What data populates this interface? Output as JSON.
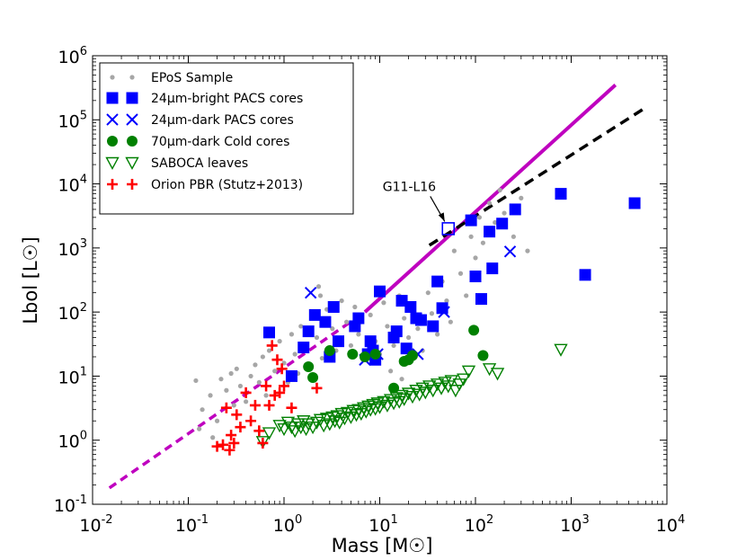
{
  "chart_data": {
    "type": "scatter",
    "title": "",
    "xlabel": "Mass [M☉]",
    "ylabel": "Lbol [L☉]",
    "xscale": "log",
    "yscale": "log",
    "xlim": [
      0.01,
      10000
    ],
    "ylim": [
      0.1,
      1000000
    ],
    "grid": false,
    "legend_position": "top-left",
    "x_ticks": [
      {
        "value": 0.01,
        "base": "10",
        "exp": "-2"
      },
      {
        "value": 0.1,
        "base": "10",
        "exp": "-1"
      },
      {
        "value": 1,
        "base": "10",
        "exp": "0"
      },
      {
        "value": 10,
        "base": "10",
        "exp": "1"
      },
      {
        "value": 100,
        "base": "10",
        "exp": "2"
      },
      {
        "value": 1000,
        "base": "10",
        "exp": "3"
      },
      {
        "value": 10000,
        "base": "10",
        "exp": "4"
      }
    ],
    "y_ticks": [
      {
        "value": 0.1,
        "base": "10",
        "exp": "-1"
      },
      {
        "value": 1,
        "base": "10",
        "exp": "0"
      },
      {
        "value": 10,
        "base": "10",
        "exp": "1"
      },
      {
        "value": 100,
        "base": "10",
        "exp": "2"
      },
      {
        "value": 1000,
        "base": "10",
        "exp": "3"
      },
      {
        "value": 10000,
        "base": "10",
        "exp": "4"
      },
      {
        "value": 100000,
        "base": "10",
        "exp": "5"
      },
      {
        "value": 1000000,
        "base": "10",
        "exp": "6"
      }
    ],
    "series": [
      {
        "name": "EPoS Sample",
        "marker": "dot",
        "color": "#a6a6a6",
        "points": [
          [
            0.12,
            8.5
          ],
          [
            0.14,
            3
          ],
          [
            0.17,
            5
          ],
          [
            0.2,
            2
          ],
          [
            0.22,
            9
          ],
          [
            0.25,
            6
          ],
          [
            0.28,
            11
          ],
          [
            0.3,
            3.5
          ],
          [
            0.32,
            13
          ],
          [
            0.35,
            7
          ],
          [
            0.4,
            4
          ],
          [
            0.45,
            10
          ],
          [
            0.5,
            15
          ],
          [
            0.55,
            8
          ],
          [
            0.6,
            20
          ],
          [
            0.65,
            5
          ],
          [
            0.7,
            25
          ],
          [
            0.8,
            12
          ],
          [
            0.9,
            35
          ],
          [
            1.0,
            16
          ],
          [
            1.1,
            8
          ],
          [
            1.2,
            45
          ],
          [
            1.3,
            22
          ],
          [
            1.4,
            11
          ],
          [
            1.5,
            60
          ],
          [
            1.6,
            30
          ],
          [
            1.8,
            14
          ],
          [
            2.0,
            80
          ],
          [
            2.2,
            40
          ],
          [
            2.5,
            19
          ],
          [
            2.8,
            110
          ],
          [
            3.2,
            55
          ],
          [
            3.5,
            25
          ],
          [
            4.0,
            150
          ],
          [
            4.5,
            70
          ],
          [
            5,
            30
          ],
          [
            5.5,
            120
          ],
          [
            6,
            45
          ],
          [
            7,
            18
          ],
          [
            8,
            90
          ],
          [
            9,
            35
          ],
          [
            10,
            22
          ],
          [
            11,
            140
          ],
          [
            12,
            60
          ],
          [
            14,
            30
          ],
          [
            16,
            180
          ],
          [
            18,
            80
          ],
          [
            20,
            40
          ],
          [
            22,
            110
          ],
          [
            25,
            55
          ],
          [
            28,
            25
          ],
          [
            32,
            200
          ],
          [
            35,
            95
          ],
          [
            40,
            45
          ],
          [
            45,
            300
          ],
          [
            50,
            150
          ],
          [
            55,
            70
          ],
          [
            60,
            900
          ],
          [
            70,
            400
          ],
          [
            80,
            180
          ],
          [
            90,
            1500
          ],
          [
            100,
            700
          ],
          [
            110,
            3000
          ],
          [
            120,
            1200
          ],
          [
            140,
            5000
          ],
          [
            160,
            2500
          ],
          [
            180,
            8000
          ],
          [
            200,
            3500
          ],
          [
            250,
            1500
          ],
          [
            300,
            6000
          ],
          [
            350,
            900
          ],
          [
            0.18,
            1.1
          ],
          [
            0.13,
            1.5
          ],
          [
            2.4,
            180
          ],
          [
            2.3,
            250
          ],
          [
            9,
            16
          ],
          [
            13,
            12
          ],
          [
            17,
            9
          ]
        ]
      },
      {
        "name": "24μm-bright PACS cores",
        "marker": "square",
        "color": "#0000ff",
        "points": [
          [
            0.7,
            48
          ],
          [
            1.2,
            10
          ],
          [
            1.6,
            28
          ],
          [
            1.8,
            50
          ],
          [
            2.1,
            90
          ],
          [
            2.7,
            70
          ],
          [
            3.0,
            20
          ],
          [
            3.3,
            120
          ],
          [
            3.7,
            35
          ],
          [
            5.5,
            60
          ],
          [
            6,
            80
          ],
          [
            7.5,
            22
          ],
          [
            8,
            35
          ],
          [
            8.5,
            25
          ],
          [
            9,
            18
          ],
          [
            10,
            210
          ],
          [
            14,
            40
          ],
          [
            15,
            50
          ],
          [
            17,
            150
          ],
          [
            19,
            27
          ],
          [
            21,
            120
          ],
          [
            24,
            80
          ],
          [
            27,
            75
          ],
          [
            36,
            60
          ],
          [
            40,
            300
          ],
          [
            45,
            115
          ],
          [
            90,
            2700
          ],
          [
            100,
            360
          ],
          [
            115,
            160
          ],
          [
            140,
            1800
          ],
          [
            150,
            480
          ],
          [
            190,
            2400
          ],
          [
            260,
            4000
          ],
          [
            780,
            7000
          ],
          [
            1400,
            380
          ],
          [
            4600,
            5000
          ]
        ]
      },
      {
        "name": "24μm-dark PACS cores",
        "marker": "x",
        "color": "#0000ff",
        "points": [
          [
            1.9,
            200
          ],
          [
            7,
            18
          ],
          [
            9.5,
            22
          ],
          [
            25,
            22
          ],
          [
            47,
            100
          ],
          [
            230,
            880
          ]
        ]
      },
      {
        "name": "70μm-dark Cold cores",
        "marker": "circle",
        "color": "#008000",
        "points": [
          [
            1.8,
            14
          ],
          [
            2.0,
            9.5
          ],
          [
            3.0,
            25
          ],
          [
            5.2,
            22
          ],
          [
            7,
            20
          ],
          [
            9,
            22
          ],
          [
            14,
            6.5
          ],
          [
            18,
            17
          ],
          [
            20,
            18
          ],
          [
            22,
            21
          ],
          [
            96,
            52
          ],
          [
            120,
            21
          ]
        ]
      },
      {
        "name": "SABOCA leaves",
        "marker": "triangle-down",
        "color": "#008000",
        "points": [
          [
            0.9,
            1.7
          ],
          [
            1.0,
            1.5
          ],
          [
            1.1,
            1.9
          ],
          [
            1.2,
            1.6
          ],
          [
            1.3,
            1.4
          ],
          [
            1.4,
            1.8
          ],
          [
            1.5,
            1.6
          ],
          [
            1.6,
            2.0
          ],
          [
            1.7,
            1.5
          ],
          [
            1.8,
            1.8
          ],
          [
            2.0,
            1.6
          ],
          [
            2.2,
            1.9
          ],
          [
            2.4,
            2.1
          ],
          [
            2.6,
            1.7
          ],
          [
            2.8,
            2.2
          ],
          [
            3.0,
            1.8
          ],
          [
            3.2,
            2.3
          ],
          [
            3.4,
            2.0
          ],
          [
            3.6,
            2.4
          ],
          [
            3.8,
            1.9
          ],
          [
            4.0,
            2.6
          ],
          [
            4.3,
            2.2
          ],
          [
            4.6,
            2.7
          ],
          [
            5.0,
            2.3
          ],
          [
            5.3,
            2.9
          ],
          [
            5.7,
            2.5
          ],
          [
            6.0,
            3.0
          ],
          [
            6.4,
            2.6
          ],
          [
            6.8,
            3.2
          ],
          [
            7.2,
            2.8
          ],
          [
            7.6,
            3.4
          ],
          [
            8.0,
            3.0
          ],
          [
            8.5,
            3.6
          ],
          [
            9.0,
            3.1
          ],
          [
            9.5,
            3.8
          ],
          [
            10,
            3.3
          ],
          [
            11,
            4.0
          ],
          [
            12,
            3.5
          ],
          [
            13,
            4.3
          ],
          [
            14,
            3.8
          ],
          [
            15,
            4.6
          ],
          [
            16,
            4.0
          ],
          [
            17,
            5.0
          ],
          [
            18,
            4.4
          ],
          [
            20,
            5.4
          ],
          [
            22,
            4.8
          ],
          [
            24,
            6.0
          ],
          [
            26,
            5.2
          ],
          [
            28,
            6.5
          ],
          [
            30,
            5.6
          ],
          [
            33,
            7.0
          ],
          [
            36,
            6.0
          ],
          [
            40,
            7.5
          ],
          [
            44,
            6.5
          ],
          [
            48,
            8.0
          ],
          [
            52,
            7.0
          ],
          [
            56,
            8.5
          ],
          [
            62,
            6.0
          ],
          [
            68,
            7.5
          ],
          [
            75,
            9.0
          ],
          [
            85,
            12
          ],
          [
            140,
            13
          ],
          [
            170,
            11
          ],
          [
            780,
            26
          ],
          [
            0.6,
            0.95
          ],
          [
            0.7,
            1.3
          ]
        ]
      },
      {
        "name": "Orion PBR (Stutz+2013)",
        "marker": "plus",
        "color": "#ff0000",
        "points": [
          [
            0.2,
            0.8
          ],
          [
            0.23,
            0.85
          ],
          [
            0.25,
            3.2
          ],
          [
            0.27,
            0.7
          ],
          [
            0.28,
            1.2
          ],
          [
            0.3,
            0.9
          ],
          [
            0.32,
            2.5
          ],
          [
            0.35,
            1.6
          ],
          [
            0.4,
            5.5
          ],
          [
            0.45,
            2.0
          ],
          [
            0.5,
            3.5
          ],
          [
            0.55,
            1.4
          ],
          [
            0.6,
            0.9
          ],
          [
            0.65,
            7
          ],
          [
            0.7,
            3.5
          ],
          [
            0.75,
            30
          ],
          [
            0.8,
            5
          ],
          [
            0.85,
            18
          ],
          [
            0.9,
            5.5
          ],
          [
            0.95,
            13
          ],
          [
            1.0,
            7
          ],
          [
            1.2,
            3.2
          ],
          [
            2.2,
            6.5
          ]
        ]
      }
    ],
    "lines": [
      {
        "name": "",
        "style": "solid",
        "color": "#bf00bf",
        "x": [
          7,
          2900
        ],
        "y": [
          100,
          350000
        ]
      },
      {
        "name": "",
        "style": "dashed",
        "color": "#bf00bf",
        "x": [
          0.015,
          7
        ],
        "y": [
          0.18,
          100
        ]
      },
      {
        "name": "",
        "style": "dashed",
        "color": "#000000",
        "x": [
          33,
          6200
        ],
        "y": [
          1100,
          160000
        ]
      }
    ],
    "annotation": {
      "text": "G11-L16",
      "x": 52,
      "y": 2000,
      "marker": "open-square",
      "color": "#0000ff"
    }
  }
}
